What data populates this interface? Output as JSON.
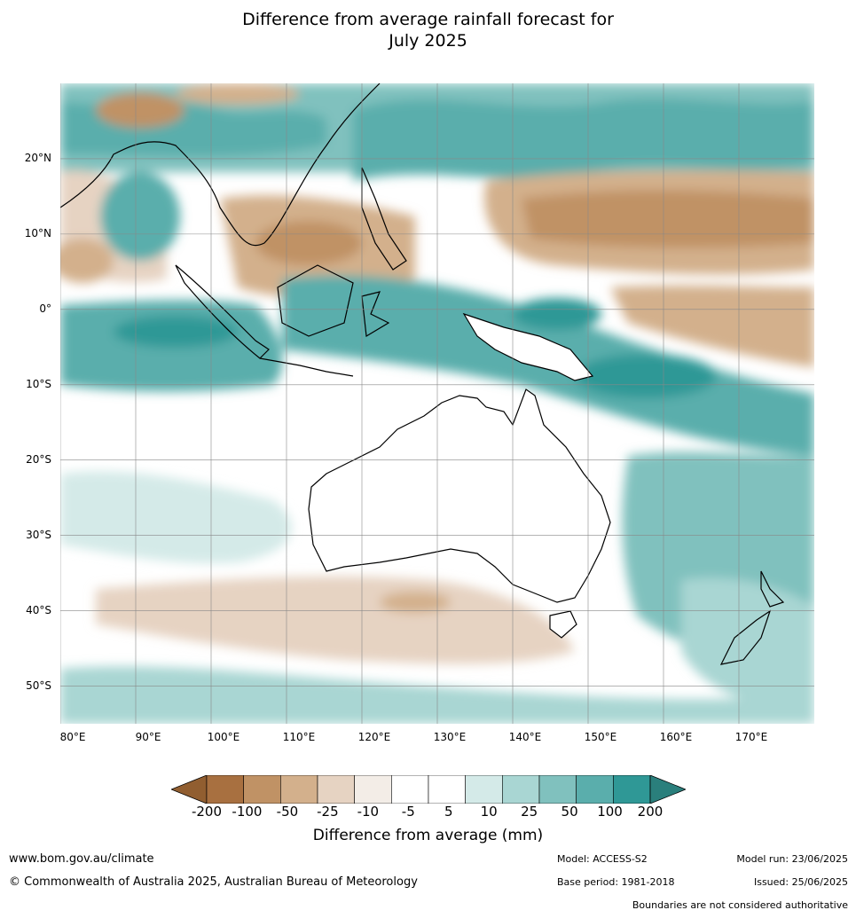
{
  "title": {
    "line1": "Difference from average rainfall forecast for",
    "line2": "July 2025"
  },
  "map": {
    "region": "Indian Ocean – Maritime Continent – Australia – Western Pacific",
    "lon_range": [
      80,
      180
    ],
    "lat_range": [
      -55,
      30
    ],
    "lat_ticks": [
      {
        "value": 20,
        "label": "20°N"
      },
      {
        "value": 10,
        "label": "10°N"
      },
      {
        "value": 0,
        "label": "0°"
      },
      {
        "value": -10,
        "label": "10°S"
      },
      {
        "value": -20,
        "label": "20°S"
      },
      {
        "value": -30,
        "label": "30°S"
      },
      {
        "value": -40,
        "label": "40°S"
      },
      {
        "value": -50,
        "label": "50°S"
      }
    ],
    "lon_ticks": [
      {
        "value": 80,
        "label": "80°E"
      },
      {
        "value": 90,
        "label": "90°E"
      },
      {
        "value": 100,
        "label": "100°E"
      },
      {
        "value": 110,
        "label": "110°E"
      },
      {
        "value": 120,
        "label": "120°E"
      },
      {
        "value": 130,
        "label": "130°E"
      },
      {
        "value": 140,
        "label": "140°E"
      },
      {
        "value": 150,
        "label": "150°E"
      },
      {
        "value": 160,
        "label": "160°E"
      },
      {
        "value": 170,
        "label": "170°E"
      }
    ],
    "colors": {
      "c-200": "#a87040",
      "c-100": "#c09265",
      "c-50": "#d3b08c",
      "c-25": "#e6d3c2",
      "c-10": "#f3ede7",
      "c-5": "#ffffff",
      "c5": "#d4eae8",
      "c10": "#a9d6d3",
      "c25": "#80c1be",
      "c50": "#5aaeac",
      "c100": "#2f9896",
      "c200": "#1f7b78"
    }
  },
  "colorbar": {
    "colors": [
      "#a87040",
      "#c09265",
      "#d3b08c",
      "#e6d3c2",
      "#f3ede7",
      "#ffffff",
      "#ffffff",
      "#d4eae8",
      "#a9d6d3",
      "#80c1be",
      "#5aaeac",
      "#2f9896"
    ],
    "ext_low_color": "#915e30",
    "ext_high_color": "#2a7f7c",
    "ticks": [
      "-200",
      "-100",
      "-50",
      "-25",
      "-10",
      "-5",
      "5",
      "10",
      "25",
      "50",
      "100",
      "200"
    ],
    "label": "Difference from average (mm)"
  },
  "footer": {
    "url": "www.bom.gov.au/climate",
    "copyright": "© Commonwealth of Australia 2025, Australian Bureau of Meteorology",
    "model": "Model: ACCESS-S2",
    "base_period": "Base period: 1981-2018",
    "model_run": "Model run: 23/06/2025",
    "issued": "Issued: 25/06/2025",
    "boundaries": "Boundaries are not considered authoritative"
  }
}
